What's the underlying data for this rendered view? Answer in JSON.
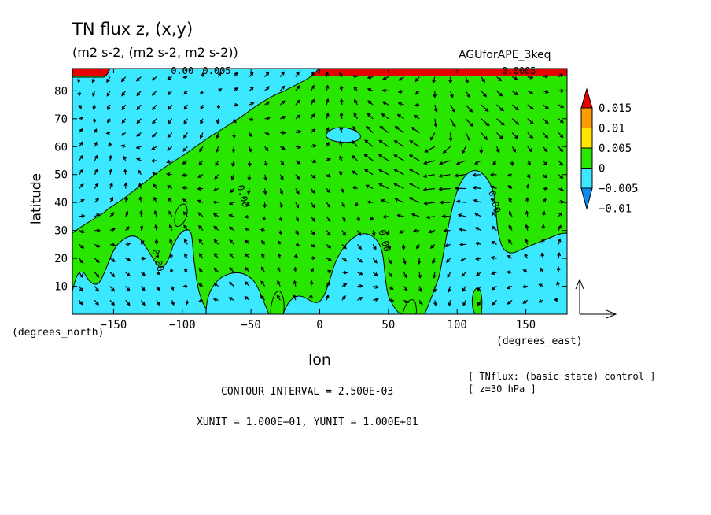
{
  "title": "TN flux z, (x,y)",
  "subtitle": "(m2 s-2, (m2 s-2, m2 s-2))",
  "run_name": "AGUforAPE_3keq",
  "contour_interval": "CONTOUR INTERVAL = 2.500E-03",
  "vector_units": "XUNIT = 1.000E+01, YUNIT = 1.000E+01",
  "notes": [
    "[ TNflux: (basic state) control ]",
    "[ z=30 hPa ]"
  ],
  "colors": {
    "c_neg2": "#0a8cf0",
    "c_neg1": "#3ce8ff",
    "c_pos1": "#28e600",
    "c_pos2": "#ffe600",
    "c_pos3": "#ff9b00",
    "c_pos4": "#e60000",
    "vector": "#000000",
    "contour": "#000000"
  },
  "chart_data": {
    "type": "heatmap",
    "xlabel": "lon",
    "ylabel": "latitude",
    "x_unit_label": "(degrees_east)",
    "y_unit_label": "(degrees_north)",
    "xlim": [
      -180,
      180
    ],
    "ylim": [
      0,
      88
    ],
    "x_ticks": [
      -150,
      -100,
      -50,
      0,
      50,
      100,
      150
    ],
    "y_ticks": [
      10,
      20,
      30,
      40,
      50,
      60,
      70,
      80
    ],
    "colorbar_levels": [
      "0.015",
      "0.01",
      "0.005",
      "0",
      "-0.005",
      "-0.01"
    ],
    "contour_labels": [
      {
        "text": "0.00",
        "lon": -120,
        "lat": 19
      },
      {
        "text": "0.00",
        "lon": -58,
        "lat": 42
      },
      {
        "text": "0.00",
        "lon": 45,
        "lat": 26
      },
      {
        "text": "0.00",
        "lon": 125,
        "lat": 40
      },
      {
        "text": "0.00",
        "lon": -100,
        "lat": 86
      },
      {
        "text": "0.005",
        "lon": -75,
        "lat": 86
      },
      {
        "text": "0.0005",
        "lon": 145,
        "lat": 86
      }
    ],
    "regions": [
      {
        "level": "0.005",
        "note": "mostly 0 to 0.005 background"
      },
      {
        "level": "-0.005",
        "note": "west / northwest and low-latitude pockets"
      },
      {
        "level": "0.015",
        "note": "thin band along top edge"
      }
    ]
  }
}
